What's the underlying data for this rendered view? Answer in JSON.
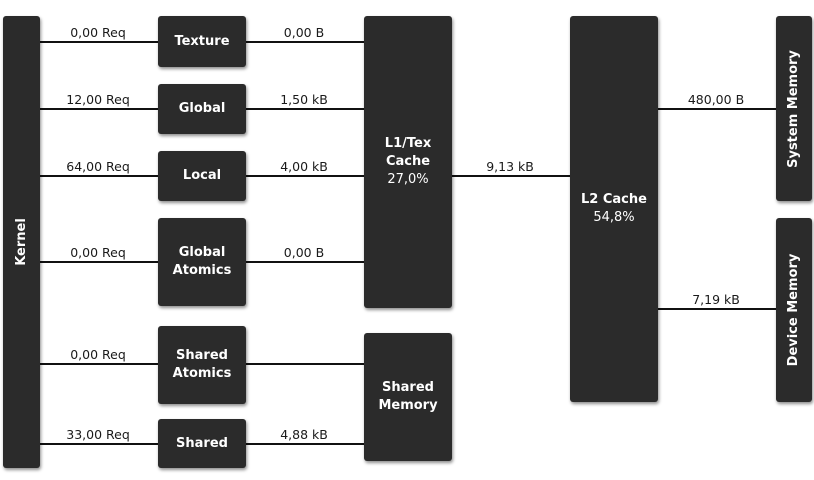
{
  "blocks": {
    "kernel": "Kernel",
    "texture": "Texture",
    "global": "Global",
    "local": "Local",
    "global_atomics": "Global Atomics",
    "shared_atomics": "Shared Atomics",
    "shared": "Shared",
    "l1tex": {
      "label": "L1/Tex Cache",
      "hit_rate": "27,0%"
    },
    "shared_memory": "Shared Memory",
    "l2": {
      "label": "L2 Cache",
      "hit_rate": "54,8%"
    },
    "system_memory": "System Memory",
    "device_memory": "Device Memory"
  },
  "requests": {
    "texture": "0,00 Req",
    "global": "12,00 Req",
    "local": "64,00 Req",
    "global_atomics": "0,00 Req",
    "shared_atomics": "0,00 Req",
    "shared": "33,00 Req"
  },
  "bytes": {
    "texture_l1": "0,00 B",
    "global_l1": "1,50 kB",
    "local_l1": "4,00 kB",
    "global_atomics_l1": "0,00 B",
    "shared_sharedmem": "4,88 kB",
    "l1_l2": "9,13 kB",
    "l2_system": "480,00 B",
    "l2_device": "7,19 kB"
  }
}
